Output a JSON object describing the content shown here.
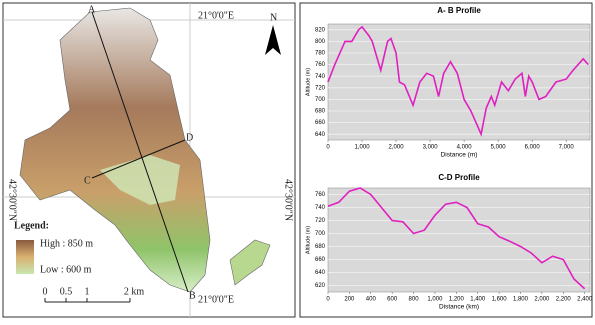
{
  "map": {
    "points": [
      "A",
      "B",
      "C",
      "D"
    ],
    "lon_top": "21°0'0\"E",
    "lon_bottom": "21°0'0\"E",
    "north": "N",
    "lat_left": "42°30'0\"N",
    "lat_right": "42°30'0\"N",
    "legend_title": "Legend:",
    "legend_high": "High : 850 m",
    "legend_low": "Low : 600 m",
    "scale": [
      "0",
      "0.5",
      "1",
      "2 km"
    ]
  },
  "chart_data": [
    {
      "type": "line",
      "title": "A- B Profile",
      "x_label": "Distance (m)",
      "y_label": "Altitude (m)",
      "color": "#e020c0",
      "grid": true,
      "x": [
        0,
        200,
        500,
        700,
        900,
        1000,
        1200,
        1300,
        1550,
        1750,
        1850,
        2000,
        2100,
        2250,
        2500,
        2700,
        2900,
        3100,
        3250,
        3400,
        3600,
        3800,
        4000,
        4200,
        4350,
        4500,
        4650,
        4800,
        4900,
        5100,
        5300,
        5500,
        5700,
        5800,
        5900,
        6000,
        6200,
        6400,
        6700,
        7000,
        7200,
        7500,
        7650
      ],
      "values": [
        730,
        760,
        800,
        800,
        820,
        825,
        810,
        800,
        750,
        800,
        805,
        780,
        730,
        725,
        690,
        730,
        745,
        740,
        705,
        745,
        765,
        745,
        700,
        680,
        660,
        640,
        685,
        705,
        690,
        730,
        715,
        735,
        745,
        705,
        740,
        730,
        700,
        705,
        730,
        735,
        750,
        770,
        760
      ],
      "xlim": [
        0,
        7700
      ],
      "xticks": [
        0,
        {
          "value": 1000,
          "label": "1,000"
        },
        {
          "value": 2000,
          "label": "2,000"
        },
        {
          "value": 3000,
          "label": "3,000"
        },
        {
          "value": 4000,
          "label": "4,000"
        },
        {
          "value": 5000,
          "label": "5,000"
        },
        {
          "value": 6000,
          "label": "6,000"
        },
        {
          "value": 7000,
          "label": "7,000"
        }
      ],
      "ylim": [
        630,
        830
      ],
      "yticks": [
        640,
        660,
        680,
        700,
        720,
        740,
        760,
        780,
        800,
        820
      ]
    },
    {
      "type": "line",
      "title": "C-D Profile",
      "x_label": "Distance (km)",
      "y_label": "Altitude (m)",
      "color": "#e020c0",
      "grid": true,
      "x": [
        0,
        100,
        200,
        300,
        400,
        500,
        600,
        700,
        800,
        900,
        1000,
        1100,
        1200,
        1300,
        1400,
        1500,
        1600,
        1700,
        1800,
        1900,
        2000,
        2100,
        2200,
        2300,
        2400
      ],
      "values": [
        742,
        748,
        765,
        770,
        760,
        740,
        720,
        718,
        700,
        705,
        728,
        745,
        748,
        740,
        715,
        710,
        695,
        688,
        680,
        670,
        655,
        665,
        660,
        630,
        615
      ],
      "xlim": [
        0,
        2450
      ],
      "xticks": [
        0,
        200,
        400,
        600,
        800,
        {
          "value": 1000,
          "label": "1,000"
        },
        {
          "value": 1200,
          "label": "1,200"
        },
        {
          "value": 1400,
          "label": "1,400"
        },
        {
          "value": 1600,
          "label": "1,600"
        },
        {
          "value": 1800,
          "label": "1,800"
        },
        {
          "value": 2000,
          "label": "2,000"
        },
        {
          "value": 2200,
          "label": "2,200"
        },
        {
          "value": 2400,
          "label": "2,400"
        }
      ],
      "ylim": [
        610,
        770
      ],
      "yticks": [
        620,
        640,
        660,
        680,
        700,
        720,
        740,
        760
      ]
    }
  ]
}
